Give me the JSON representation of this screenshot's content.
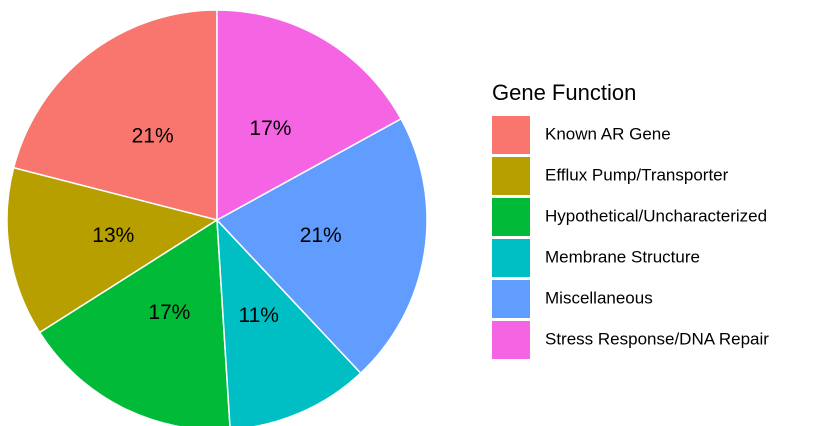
{
  "chart_data": {
    "type": "pie",
    "legend_title": "Gene Function",
    "categories": [
      "Known AR Gene",
      "Efflux Pump/Transporter",
      "Hypothetical/Uncharacterized",
      "Membrane Structure",
      "Miscellaneous",
      "Stress Response/DNA Repair"
    ],
    "values": [
      21,
      13,
      17,
      11,
      21,
      17
    ],
    "value_labels": [
      "21%",
      "13%",
      "17%",
      "11%",
      "21%",
      "17%"
    ],
    "colors": [
      "#F8766D",
      "#B79F00",
      "#00BA38",
      "#00BFC4",
      "#619CFF",
      "#F564E3"
    ],
    "direction": "counterclockwise",
    "legend": "right"
  }
}
